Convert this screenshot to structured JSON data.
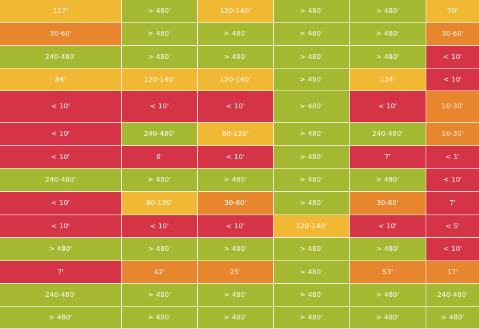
{
  "palette": {
    "green": "#a4b832",
    "yellow": "#f1b834",
    "orange": "#e8862d",
    "red": "#d53446"
  },
  "rows": [
    [
      {
        "t": "117'",
        "s": "yellow"
      },
      {
        "t": "> 480'",
        "s": "green"
      },
      {
        "t": "120-140'",
        "s": "yellow"
      },
      {
        "t": "> 480'",
        "s": "green"
      },
      {
        "t": "> 480'",
        "s": "green"
      },
      {
        "t": "70'",
        "s": "yellow"
      }
    ],
    [
      {
        "t": "30-60'",
        "s": "orange"
      },
      {
        "t": "> 480'",
        "s": "green"
      },
      {
        "t": "> 480'",
        "s": "green"
      },
      {
        "t": "> 480'",
        "s": "green"
      },
      {
        "t": "> 480'",
        "s": "green"
      },
      {
        "t": "30-60'",
        "s": "orange"
      }
    ],
    [
      {
        "t": "240-480'",
        "s": "green"
      },
      {
        "t": "> 480'",
        "s": "green"
      },
      {
        "t": "> 480'",
        "s": "green"
      },
      {
        "t": "> 480'",
        "s": "green"
      },
      {
        "t": "> 480'",
        "s": "green"
      },
      {
        "t": "< 10'",
        "s": "red"
      }
    ],
    [
      {
        "t": "84'",
        "s": "yellow"
      },
      {
        "t": "120-140'",
        "s": "yellow"
      },
      {
        "t": "120-140'",
        "s": "yellow"
      },
      {
        "t": "> 480'",
        "s": "green"
      },
      {
        "t": "134'",
        "s": "yellow"
      },
      {
        "t": "< 10'",
        "s": "red"
      }
    ],
    [
      {
        "t": "< 10'",
        "s": "red"
      },
      {
        "t": "< 10'",
        "s": "red"
      },
      {
        "t": "< 10'",
        "s": "red"
      },
      {
        "t": "> 480'",
        "s": "green"
      },
      {
        "t": "< 10'",
        "s": "red"
      },
      {
        "t": "10-30'",
        "s": "orange"
      }
    ],
    [
      {
        "t": "< 10'",
        "s": "red"
      },
      {
        "t": "240-480'",
        "s": "green"
      },
      {
        "t": "60-120'",
        "s": "yellow"
      },
      {
        "t": "> 480'",
        "s": "green"
      },
      {
        "t": "240-480'",
        "s": "green"
      },
      {
        "t": "10-30'",
        "s": "orange"
      }
    ],
    [
      {
        "t": "< 10'",
        "s": "red"
      },
      {
        "t": "6'",
        "s": "red"
      },
      {
        "t": "< 10'",
        "s": "red"
      },
      {
        "t": "> 480'",
        "s": "green"
      },
      {
        "t": "7'",
        "s": "red"
      },
      {
        "t": "< 1'",
        "s": "red"
      }
    ],
    [
      {
        "t": "240-480'",
        "s": "green"
      },
      {
        "t": "> 480'",
        "s": "green"
      },
      {
        "t": "> 480'",
        "s": "green"
      },
      {
        "t": "> 480'",
        "s": "green"
      },
      {
        "t": "> 480'",
        "s": "green"
      },
      {
        "t": "< 10'",
        "s": "red"
      }
    ],
    [
      {
        "t": "< 10'",
        "s": "red"
      },
      {
        "t": "60-120'",
        "s": "yellow"
      },
      {
        "t": "30-60'",
        "s": "orange"
      },
      {
        "t": "> 480'",
        "s": "green"
      },
      {
        "t": "30-60'",
        "s": "orange"
      },
      {
        "t": "7'",
        "s": "red"
      }
    ],
    [
      {
        "t": "< 10'",
        "s": "red"
      },
      {
        "t": "< 10'",
        "s": "red"
      },
      {
        "t": "< 10'",
        "s": "red"
      },
      {
        "t": "120-140'",
        "s": "yellow"
      },
      {
        "t": "< 10'",
        "s": "red"
      },
      {
        "t": "< 5'",
        "s": "red"
      }
    ],
    [
      {
        "t": "> 480'",
        "s": "green"
      },
      {
        "t": "> 480'",
        "s": "green"
      },
      {
        "t": "> 480'",
        "s": "green"
      },
      {
        "t": "> 480'",
        "s": "green"
      },
      {
        "t": "> 480'",
        "s": "green"
      },
      {
        "t": "< 10'",
        "s": "red"
      }
    ],
    [
      {
        "t": "7'",
        "s": "red"
      },
      {
        "t": "42'",
        "s": "orange"
      },
      {
        "t": "25'",
        "s": "orange"
      },
      {
        "t": "> 480'",
        "s": "green"
      },
      {
        "t": "53'",
        "s": "orange"
      },
      {
        "t": "17'",
        "s": "orange"
      }
    ],
    [
      {
        "t": "240-480'",
        "s": "green"
      },
      {
        "t": "> 480'",
        "s": "green"
      },
      {
        "t": "> 480'",
        "s": "green"
      },
      {
        "t": "> 480'",
        "s": "green"
      },
      {
        "t": "> 480'",
        "s": "green"
      },
      {
        "t": "240-480'",
        "s": "green"
      }
    ],
    [
      {
        "t": "> 480'",
        "s": "green"
      },
      {
        "t": "> 480'",
        "s": "green"
      },
      {
        "t": "> 480'",
        "s": "green"
      },
      {
        "t": "> 480'",
        "s": "green"
      },
      {
        "t": "> 480'",
        "s": "green"
      },
      {
        "t": "> 480'",
        "s": "green"
      }
    ]
  ]
}
